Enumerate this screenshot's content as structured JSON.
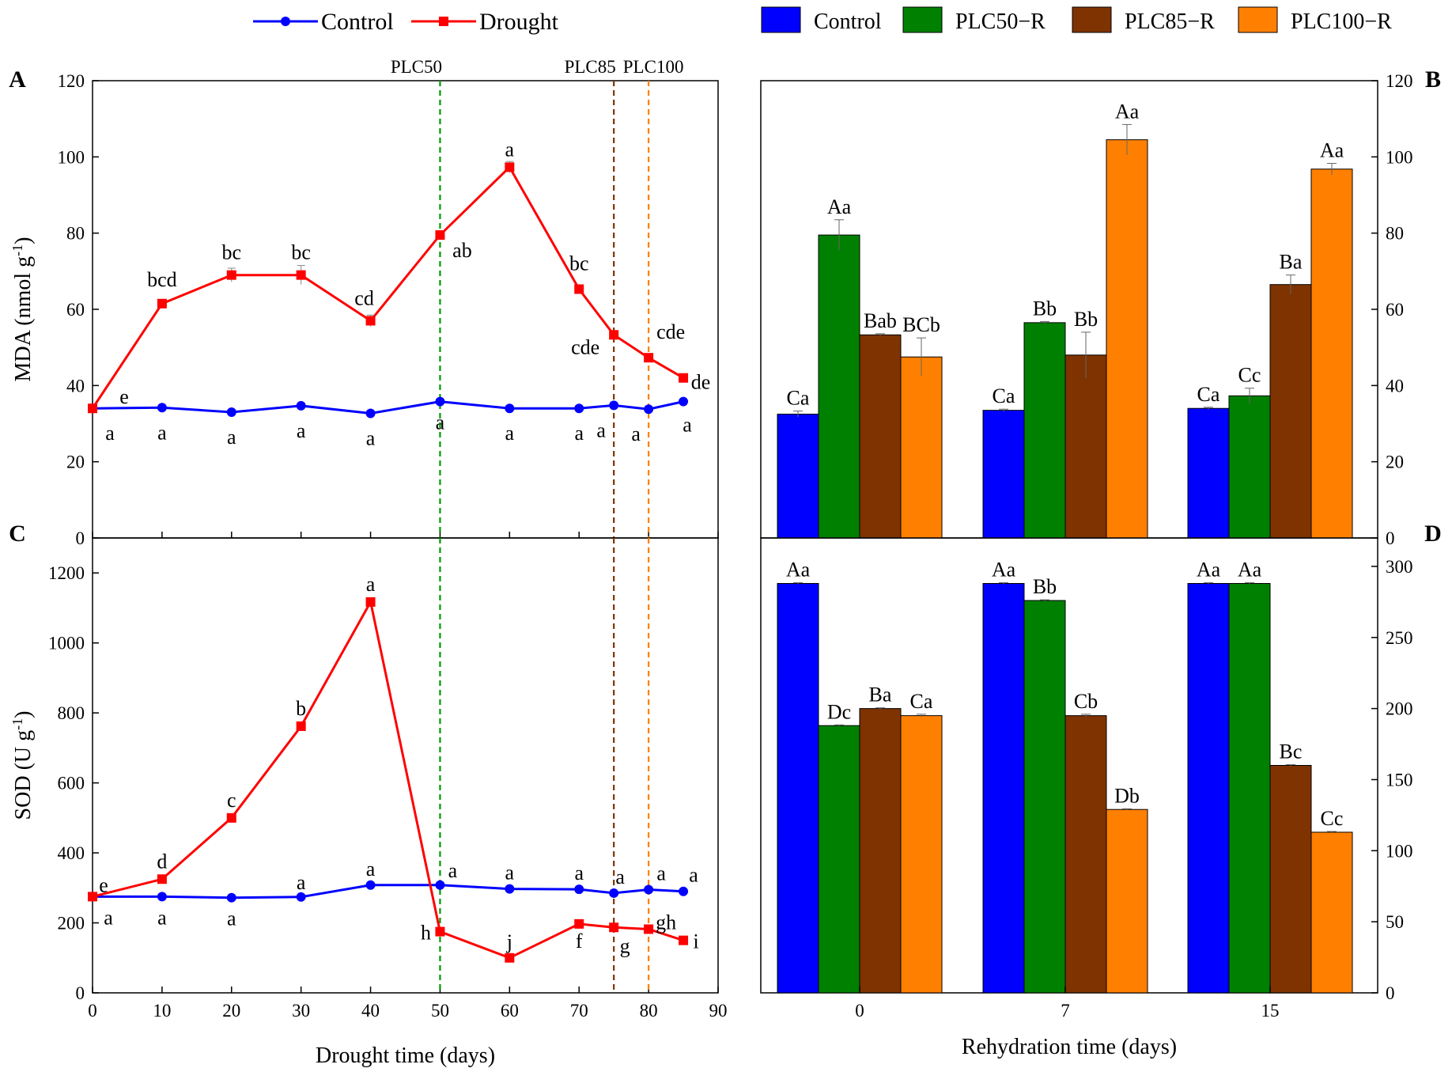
{
  "legend_left": [
    {
      "label": "Control",
      "color": "#0000ff",
      "marker": "circle"
    },
    {
      "label": "Drought",
      "color": "#ff0000",
      "marker": "square"
    }
  ],
  "legend_right": [
    {
      "label": "Control",
      "color": "#0000ff"
    },
    {
      "label": "PLC50−R",
      "color": "#008000"
    },
    {
      "label": "PLC85−R",
      "color": "#7f3300"
    },
    {
      "label": "PLC100−R",
      "color": "#ff8000"
    }
  ],
  "chart_data": [
    {
      "panel": "A",
      "type": "line",
      "ylabel": "MDA (nmol g",
      "ylabel_sup": "-1",
      "ylabel_close": ")",
      "xlim": [
        0,
        90
      ],
      "ylim": [
        0,
        120
      ],
      "yticks": [
        0,
        20,
        40,
        60,
        80,
        100,
        120
      ],
      "series": [
        {
          "name": "Control",
          "color": "#0000ff",
          "x": [
            0,
            10,
            20,
            30,
            40,
            50,
            60,
            70,
            75,
            80,
            85
          ],
          "y": [
            34,
            34.2,
            33,
            34.7,
            32.7,
            35.8,
            34,
            34,
            34.8,
            33.8,
            35.8
          ],
          "err": [
            0.5,
            0.4,
            0.4,
            0.5,
            0.4,
            0.5,
            0.4,
            0.4,
            0.4,
            0.4,
            0.5
          ],
          "labels": [
            "a",
            "a",
            "a",
            "a",
            "a",
            "a",
            "a",
            "a",
            "a",
            "a",
            "a"
          ]
        },
        {
          "name": "Drought",
          "color": "#ff0000",
          "x": [
            0,
            10,
            20,
            30,
            40,
            50,
            60,
            70,
            75,
            80,
            85
          ],
          "y": [
            34,
            61.5,
            69,
            69,
            57,
            79.5,
            97.3,
            65.3,
            53.3,
            47.3,
            42
          ],
          "err": [
            0.5,
            0.8,
            1.8,
            2.5,
            1.5,
            0.6,
            1.5,
            0.8,
            0.5,
            0.5,
            0.4
          ],
          "labels": [
            "e",
            "bcd",
            "bc",
            "bc",
            "cd",
            "ab",
            "a",
            "bc",
            "cde",
            "cde",
            "de"
          ]
        }
      ],
      "vlines": [
        {
          "x": 50,
          "label": "PLC50",
          "color": "#009900"
        },
        {
          "x": 75,
          "label": "PLC85",
          "color": "#7f3300"
        },
        {
          "x": 80,
          "label": "PLC100",
          "color": "#ff8000"
        }
      ]
    },
    {
      "panel": "B",
      "type": "bar",
      "ylim": [
        0,
        120
      ],
      "yticks": [
        0,
        20,
        40,
        60,
        80,
        100,
        120
      ],
      "categories": [
        "0",
        "7",
        "15"
      ],
      "series": [
        {
          "name": "Control",
          "color": "#0000ff",
          "values": [
            32.5,
            33.5,
            34
          ],
          "err": [
            0.8,
            0.3,
            0.3
          ],
          "labels": [
            "Ca",
            "Ca",
            "Ca"
          ]
        },
        {
          "name": "PLC50−R",
          "color": "#008000",
          "values": [
            79.5,
            56.5,
            37.3
          ],
          "err": [
            4,
            0.3,
            2
          ],
          "labels": [
            "Aa",
            "Bb",
            "Cc"
          ]
        },
        {
          "name": "PLC85−R",
          "color": "#7f3300",
          "values": [
            53.3,
            48,
            66.5
          ],
          "err": [
            0.3,
            6,
            2.5
          ],
          "labels": [
            "Bab",
            "Bb",
            "Ba"
          ]
        },
        {
          "name": "PLC100−R",
          "color": "#ff8000",
          "values": [
            47.5,
            104.5,
            96.8
          ],
          "err": [
            5,
            4,
            1.5
          ],
          "labels": [
            "BCb",
            "Aa",
            "Aa"
          ]
        }
      ]
    },
    {
      "panel": "C",
      "type": "line",
      "xlabel": "Drought time (days)",
      "ylabel": "SOD (U g",
      "ylabel_sup": "-1",
      "ylabel_close": ")",
      "xlim": [
        0,
        90
      ],
      "ylim": [
        0,
        1300
      ],
      "xticks": [
        0,
        10,
        20,
        30,
        40,
        50,
        60,
        70,
        80,
        90
      ],
      "yticks": [
        0,
        200,
        400,
        600,
        800,
        1000,
        1200
      ],
      "series": [
        {
          "name": "Control",
          "color": "#0000ff",
          "x": [
            0,
            10,
            20,
            30,
            40,
            50,
            60,
            70,
            75,
            80,
            85
          ],
          "y": [
            275,
            275,
            272,
            274,
            308,
            308,
            297,
            296,
            285,
            295,
            290
          ],
          "err": [
            3,
            3,
            3,
            3,
            3,
            3,
            3,
            3,
            3,
            3,
            3
          ],
          "labels": [
            "a",
            "a",
            "a",
            "a",
            "a",
            "a",
            "a",
            "a",
            "a",
            "a",
            "a"
          ]
        },
        {
          "name": "Drought",
          "color": "#ff0000",
          "x": [
            0,
            10,
            20,
            30,
            40,
            50,
            60,
            70,
            75,
            80,
            85
          ],
          "y": [
            275,
            325,
            500,
            762,
            1117,
            175,
            100,
            197,
            187,
            182,
            150
          ],
          "err": [
            3,
            4,
            5,
            8,
            12,
            3,
            3,
            3,
            3,
            3,
            3
          ],
          "labels": [
            "e",
            "d",
            "c",
            "b",
            "a",
            "h",
            "j",
            "f",
            "g",
            "gh",
            "i"
          ]
        }
      ],
      "vlines": [
        {
          "x": 50,
          "color": "#009900"
        },
        {
          "x": 75,
          "color": "#7f3300"
        },
        {
          "x": 80,
          "color": "#ff8000"
        }
      ]
    },
    {
      "panel": "D",
      "type": "bar",
      "xlabel": "Rehydration time (days)",
      "ylim": [
        0,
        320
      ],
      "yticks": [
        0,
        50,
        100,
        150,
        200,
        250,
        300
      ],
      "categories": [
        "0",
        "7",
        "15"
      ],
      "series": [
        {
          "name": "Control",
          "color": "#0000ff",
          "values": [
            288,
            288,
            288
          ],
          "err": [
            0.5,
            0.5,
            0.5
          ],
          "labels": [
            "Aa",
            "Aa",
            "Aa"
          ]
        },
        {
          "name": "PLC50−R",
          "color": "#008000",
          "values": [
            188,
            276,
            288
          ],
          "err": [
            0.5,
            0.5,
            0.5
          ],
          "labels": [
            "Dc",
            "Bb",
            "Aa"
          ]
        },
        {
          "name": "PLC85−R",
          "color": "#7f3300",
          "values": [
            200,
            195,
            160
          ],
          "err": [
            0.5,
            1,
            0.5
          ],
          "labels": [
            "Ba",
            "Cb",
            "Bc"
          ]
        },
        {
          "name": "PLC100−R",
          "color": "#ff8000",
          "values": [
            195,
            129,
            113
          ],
          "err": [
            1,
            0.5,
            0.5
          ],
          "labels": [
            "Ca",
            "Db",
            "Cc"
          ]
        }
      ]
    }
  ]
}
